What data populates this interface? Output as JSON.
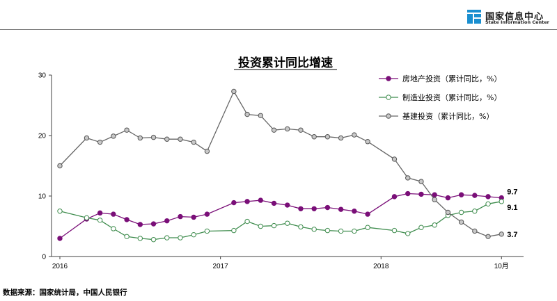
{
  "header": {
    "org_name": "国家信息中心",
    "org_name_en": "State Information Center"
  },
  "source_note": "数据来源：国家统计局，中国人民银行",
  "colors": {
    "real_estate": "#7a0f78",
    "manufacturing": "#3e8c4d",
    "infrastructure": "#666666",
    "axis": "#404040",
    "logo": "#1a8fd0"
  },
  "chart_data": {
    "type": "line",
    "title": "投资累计同比增速",
    "xlabel": "",
    "ylabel": "",
    "ylim": [
      0,
      30
    ],
    "y_ticks": [
      0,
      10,
      20,
      30
    ],
    "x_tick_labels": [
      "2016",
      "2017",
      "2018",
      "10月"
    ],
    "x": [
      "2016-01",
      "2016-02",
      "2016-03",
      "2016-04",
      "2016-05",
      "2016-06",
      "2016-07",
      "2016-08",
      "2016-09",
      "2016-10",
      "2016-11",
      "2016-12",
      "2017-01",
      "2017-02",
      "2017-03",
      "2017-04",
      "2017-05",
      "2017-06",
      "2017-07",
      "2017-08",
      "2017-09",
      "2017-10",
      "2017-11",
      "2017-12",
      "2018-01",
      "2018-02",
      "2018-03",
      "2018-04",
      "2018-05",
      "2018-06",
      "2018-07",
      "2018-08",
      "2018-09",
      "2018-10"
    ],
    "grid": false,
    "legend_position": "top-right",
    "series": [
      {
        "name": "房地产投资（累计同比，%）",
        "color": "#7a0f78",
        "marker": "filled-circle",
        "end_label": "9.7",
        "values": [
          3.0,
          null,
          6.2,
          7.2,
          7.0,
          6.1,
          5.3,
          5.4,
          5.9,
          6.6,
          6.5,
          7.0,
          null,
          8.9,
          9.1,
          9.3,
          8.8,
          8.5,
          7.9,
          7.9,
          8.1,
          7.8,
          7.5,
          7.0,
          null,
          9.9,
          10.4,
          10.3,
          10.2,
          9.7,
          10.2,
          10.1,
          9.9,
          9.7
        ]
      },
      {
        "name": "制造业投资（累计同比，%）",
        "color": "#3e8c4d",
        "marker": "open-circle",
        "end_label": "9.1",
        "values": [
          7.5,
          null,
          6.4,
          6.0,
          4.6,
          3.3,
          3.0,
          2.8,
          3.1,
          3.1,
          3.6,
          4.2,
          null,
          4.3,
          5.8,
          5.0,
          5.1,
          5.5,
          4.9,
          4.5,
          4.3,
          4.2,
          4.2,
          4.8,
          null,
          4.3,
          3.8,
          4.8,
          5.2,
          6.8,
          7.3,
          7.5,
          8.7,
          9.1
        ]
      },
      {
        "name": "基建投资（累计同比，%）",
        "color": "#666666",
        "marker": "grey-circle",
        "end_label": "3.7",
        "values": [
          15.0,
          null,
          19.6,
          18.9,
          19.9,
          20.9,
          19.6,
          19.7,
          19.4,
          19.4,
          18.9,
          17.4,
          null,
          27.3,
          23.5,
          23.3,
          20.9,
          21.1,
          20.9,
          19.8,
          19.8,
          19.6,
          20.1,
          19.0,
          null,
          16.1,
          13.0,
          12.4,
          9.4,
          7.3,
          5.7,
          4.2,
          3.3,
          3.7
        ]
      }
    ]
  }
}
